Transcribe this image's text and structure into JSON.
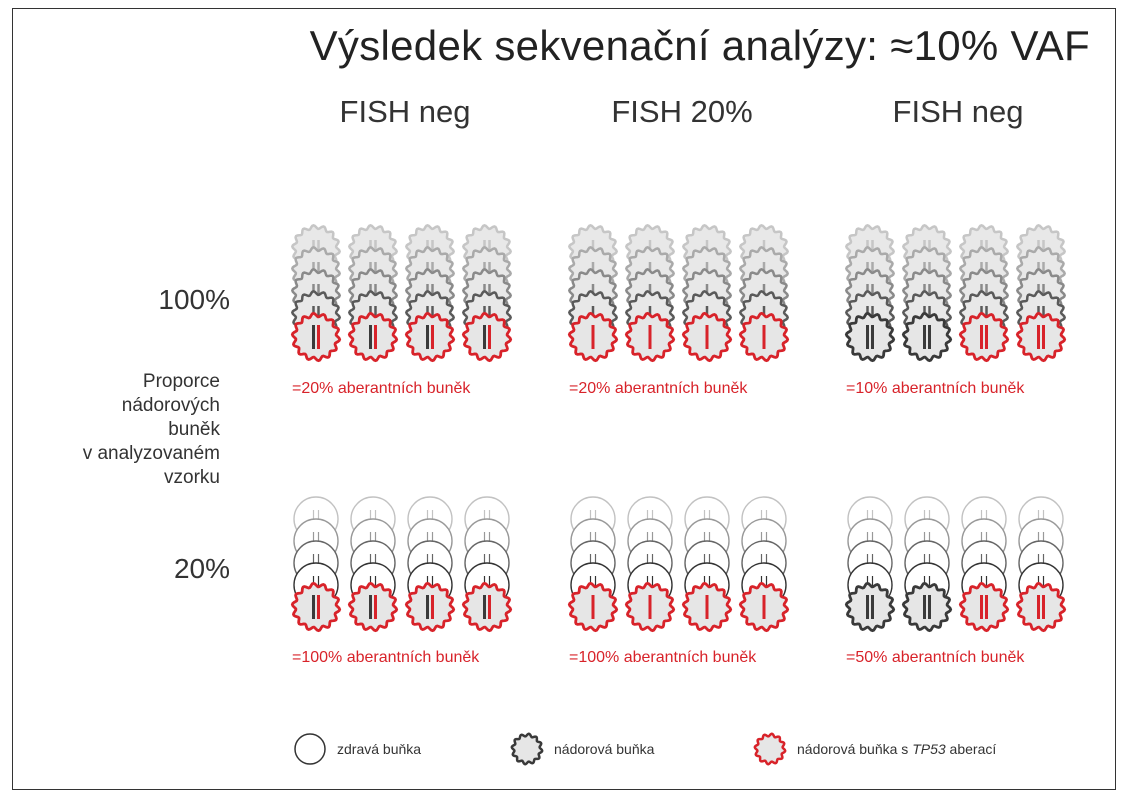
{
  "title": "Výsledek sekvenační analýzy:  ≈10% VAF",
  "columns": [
    "FISH neg",
    "FISH 20%",
    "FISH neg"
  ],
  "rows": [
    "100%",
    "20%"
  ],
  "side_label_lines": [
    "Proporce",
    "nádorových",
    "buněk",
    "v analyzovaném",
    "vzorku"
  ],
  "captions": {
    "row1": [
      "=20% aberantních buněk",
      "=20% aberantních buněk",
      "=10% aberantních buněk"
    ],
    "row2": [
      "=100% aberantních buněk",
      "=100% aberantních buněk",
      "=50% aberantních buněk"
    ]
  },
  "legend": {
    "healthy": "zdravá buňka",
    "tumor": "nádorová buňka",
    "tp53_prefix": "nádorová buňka s ",
    "tp53_gene": "TP53",
    "tp53_suffix": " aberací"
  },
  "colors": {
    "red": "#d8232a",
    "dark": "#3a3a3a",
    "cell_fill": "#e6e6e6",
    "text": "#333333"
  }
}
